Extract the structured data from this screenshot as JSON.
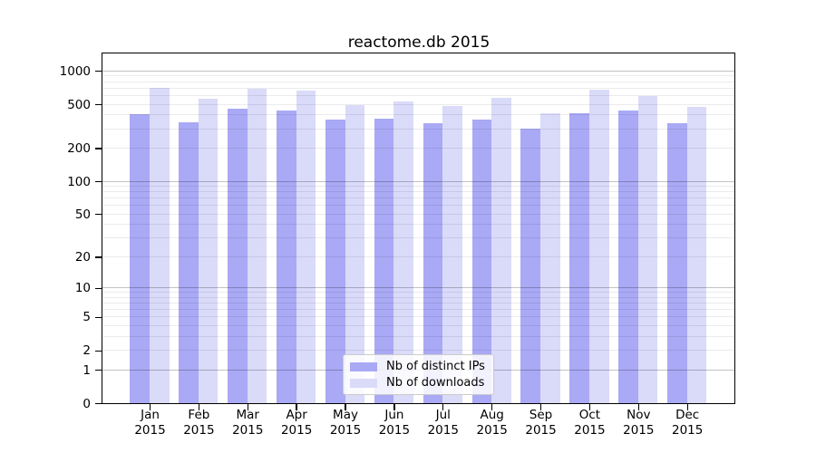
{
  "title": "reactome.db 2015",
  "chart_data": {
    "type": "bar",
    "title": "reactome.db 2015",
    "categories": [
      "Jan 2015",
      "Feb 2015",
      "Mar 2015",
      "Apr 2015",
      "May 2015",
      "Jun 2015",
      "Jul 2015",
      "Aug 2015",
      "Sep 2015",
      "Oct 2015",
      "Nov 2015",
      "Dec 2015"
    ],
    "series": [
      {
        "name": "Nb of distinct IPs",
        "color": "#a9a9f5",
        "values": [
          410,
          345,
          455,
          435,
          365,
          370,
          335,
          360,
          300,
          415,
          435,
          335
        ]
      },
      {
        "name": "Nb of downloads",
        "color": "#dadaf9",
        "values": [
          710,
          560,
          695,
          665,
          495,
          535,
          485,
          570,
          415,
          680,
          595,
          475
        ]
      }
    ],
    "xlabel": "",
    "ylabel": "",
    "yscale": "log1p",
    "y_ticks": [
      0,
      1,
      2,
      5,
      10,
      20,
      50,
      100,
      200,
      500,
      1000
    ],
    "ylim": [
      0,
      1412
    ],
    "grid": true,
    "legend_position": "lower-center-inside",
    "colors": {
      "grid_major": "#c2c2c2",
      "grid_minor": "#ebebeb",
      "axis": "#000000",
      "background": "#ffffff"
    }
  }
}
